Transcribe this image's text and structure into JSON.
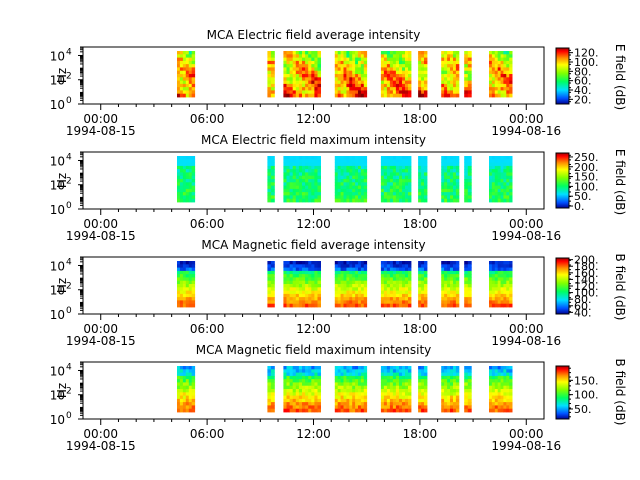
{
  "figure": {
    "panels": [
      {
        "title": "MCA  Electric field average intensity",
        "ylabel": "Hz",
        "cbar_label": "E field (dB)",
        "cbar_ticks": [
          "20.",
          "40.",
          "60.",
          "80.",
          "100.",
          "120."
        ],
        "cbar_range": [
          10,
          130
        ]
      },
      {
        "title": "MCA  Electric field maximum intensity",
        "ylabel": "Hz",
        "cbar_label": "E field (dB)",
        "cbar_ticks": [
          "0.",
          "50.",
          "100.",
          "150.",
          "200.",
          "250."
        ],
        "cbar_range": [
          -10,
          270
        ]
      },
      {
        "title": "MCA  Magnetic field average intensity",
        "ylabel": "Hz",
        "cbar_label": "B field (dB)",
        "cbar_ticks": [
          "40.",
          "60.",
          "80.",
          "100.",
          "120.",
          "140.",
          "160.",
          "180.",
          "200."
        ],
        "cbar_range": [
          35,
          205
        ]
      },
      {
        "title": "MCA  Magnetic field maximum intensity",
        "ylabel": "Hz",
        "cbar_label": "B field (dB)",
        "cbar_ticks": [
          "50.",
          "100.",
          "150."
        ],
        "cbar_range": [
          15,
          200
        ]
      }
    ],
    "x_ticks": [
      {
        "time": "00:00",
        "date": "1994-08-15",
        "hour": 0
      },
      {
        "time": "06:00",
        "date": "",
        "hour": 6
      },
      {
        "time": "12:00",
        "date": "",
        "hour": 12
      },
      {
        "time": "18:00",
        "date": "",
        "hour": 18
      },
      {
        "time": "00:00",
        "date": "1994-08-16",
        "hour": 24
      }
    ],
    "y_ticks": [
      {
        "base": "10",
        "exp": "0",
        "value": 1
      },
      {
        "base": "10",
        "exp": "2",
        "value": 100
      },
      {
        "base": "10",
        "exp": "4",
        "value": 10000
      }
    ]
  },
  "chart_data": {
    "type": "heatmap",
    "x_unit": "hour of 1994-08-15 (UT)",
    "xlim": [
      -1,
      25
    ],
    "ylim": [
      1,
      50000
    ],
    "y_scale": "log",
    "data_intervals_hours": [
      [
        4.3,
        5.3
      ],
      [
        9.4,
        9.8
      ],
      [
        10.3,
        12.4
      ],
      [
        13.2,
        15.0
      ],
      [
        15.8,
        17.5
      ],
      [
        17.9,
        18.4
      ],
      [
        19.2,
        20.2
      ],
      [
        20.5,
        20.9
      ],
      [
        21.9,
        23.2
      ]
    ],
    "colormap": [
      "#000090",
      "#0050ff",
      "#00e0ff",
      "#00ff60",
      "#80ff00",
      "#ffff00",
      "#ff9000",
      "#ff0000",
      "#800000"
    ]
  }
}
